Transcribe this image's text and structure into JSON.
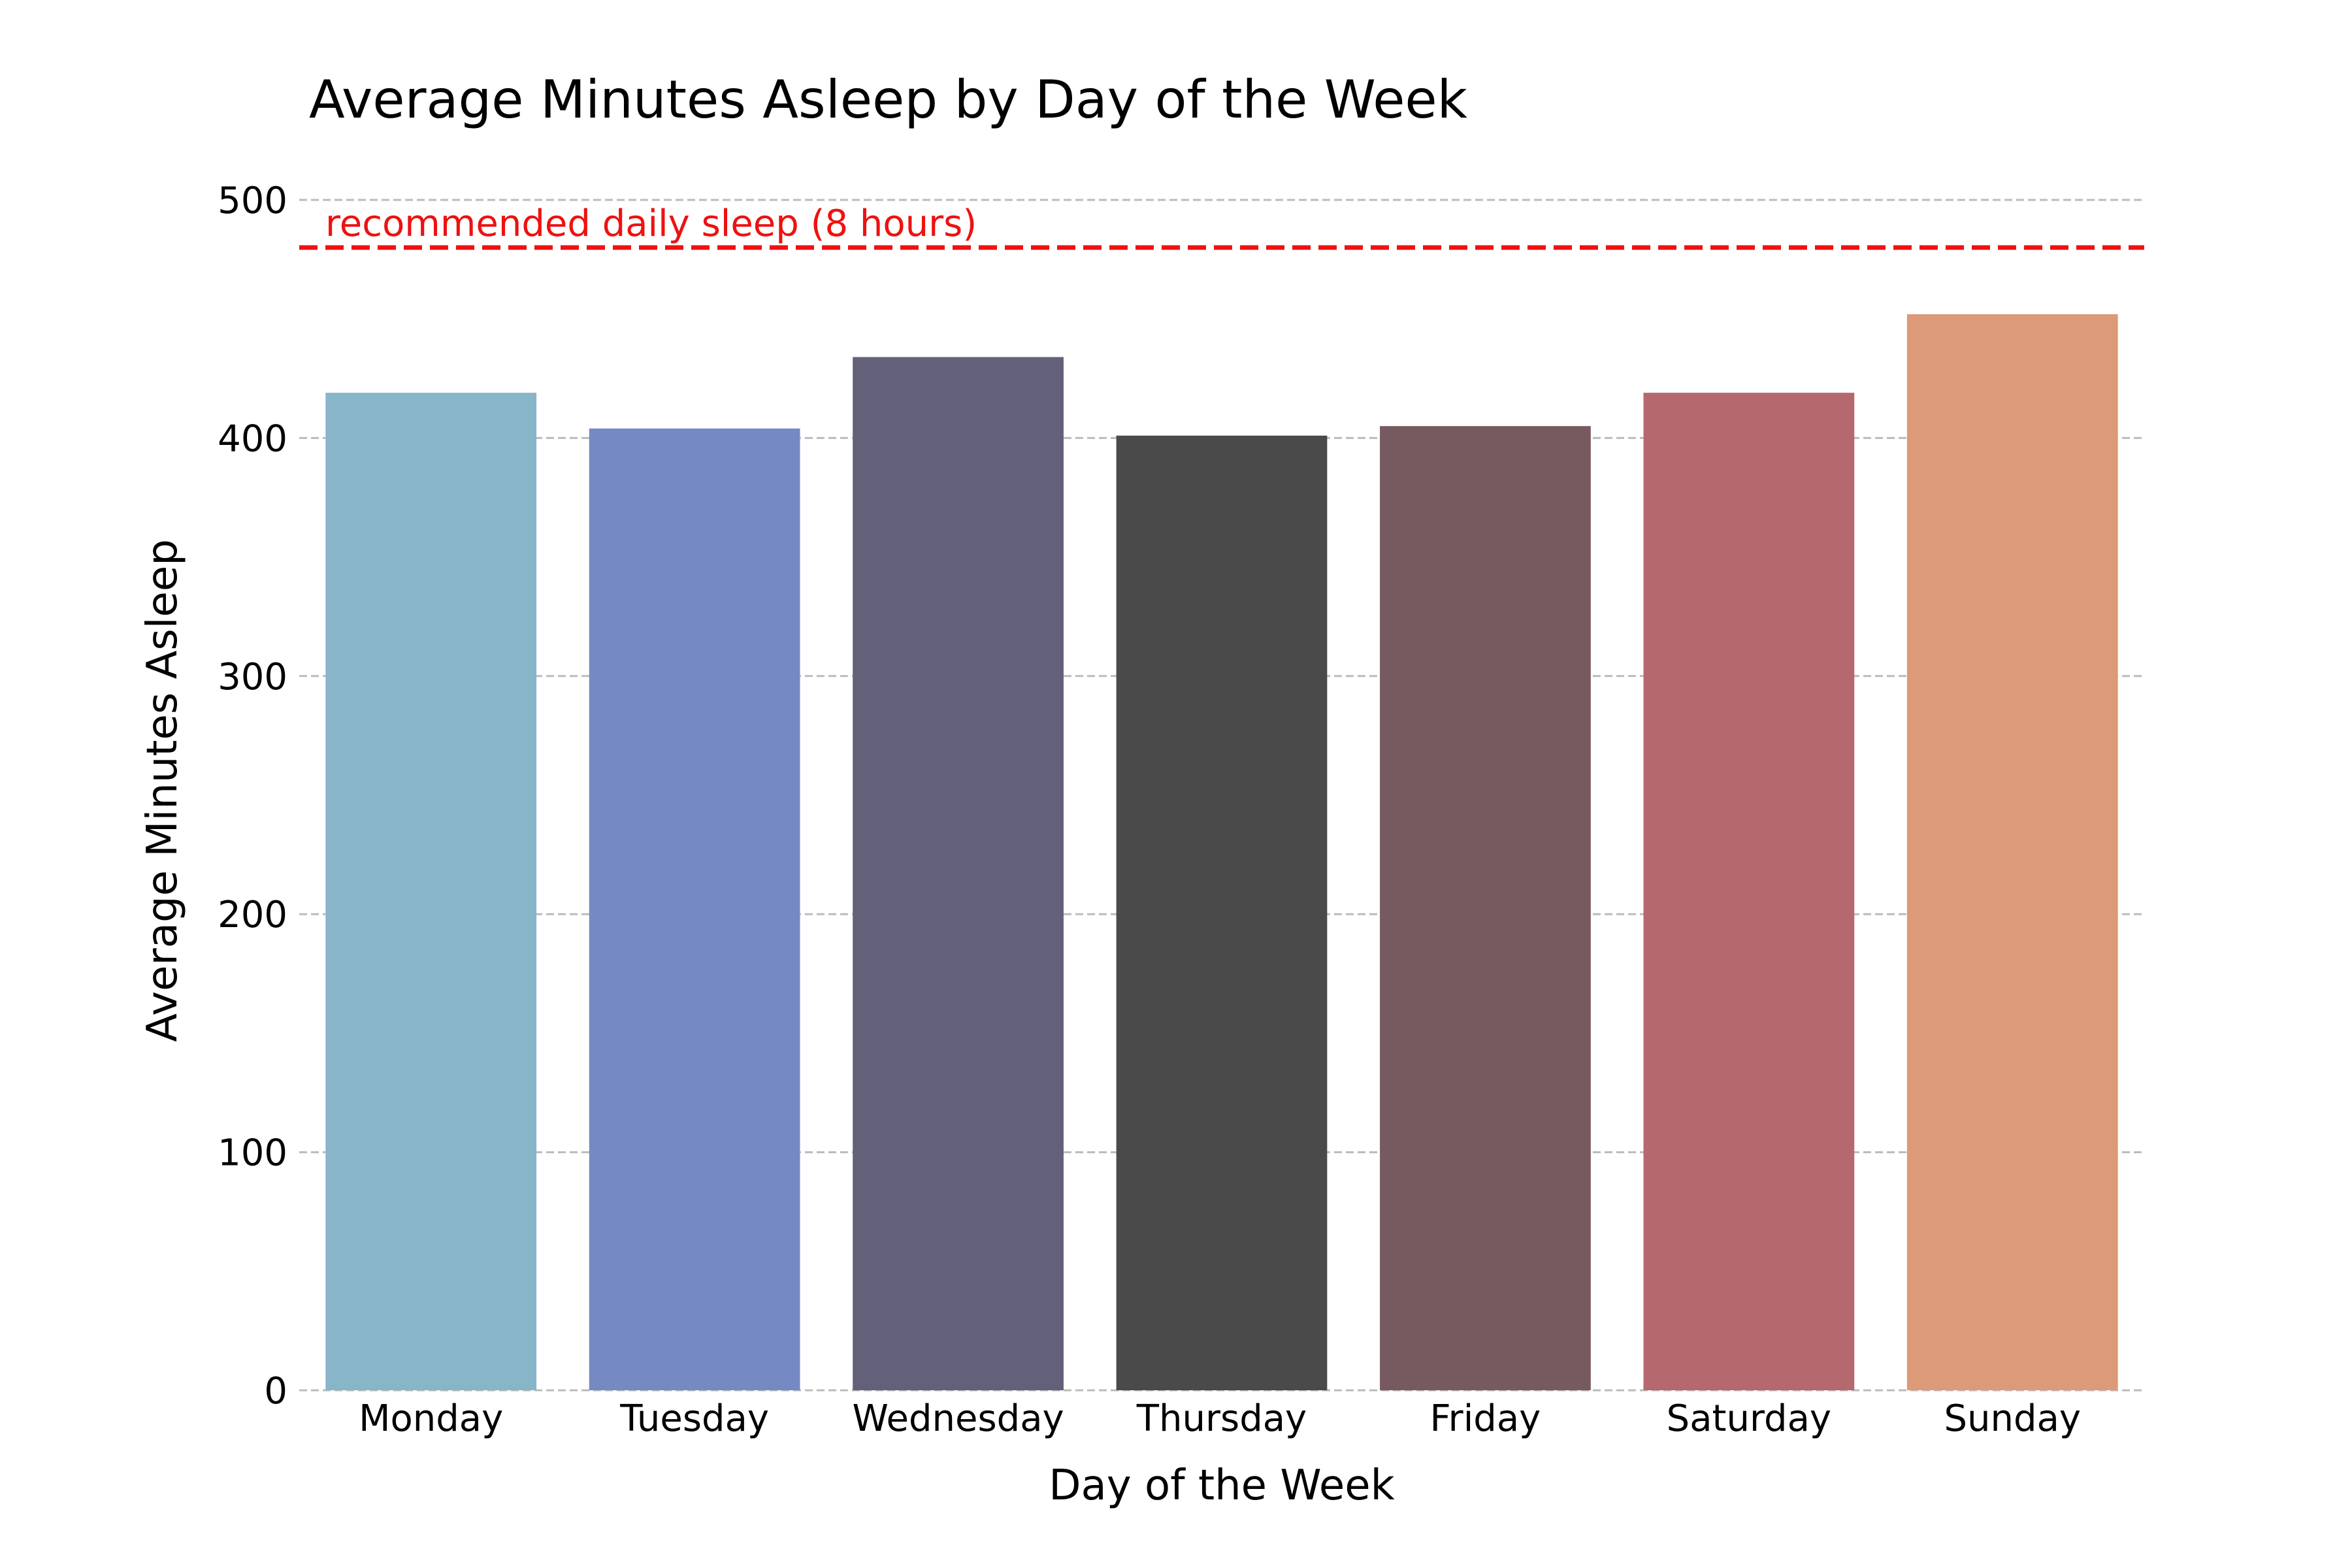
{
  "chart_data": {
    "type": "bar",
    "title": "Average Minutes Asleep by Day of the Week",
    "xlabel": "Day of the Week",
    "ylabel": "Average Minutes Asleep",
    "categories": [
      "Monday",
      "Tuesday",
      "Wednesday",
      "Thursday",
      "Friday",
      "Saturday",
      "Sunday"
    ],
    "values": [
      419,
      404,
      434,
      401,
      405,
      419,
      452
    ],
    "colors": [
      "#88b5c8",
      "#758ac3",
      "#636179",
      "#4a4a4a",
      "#775a5f",
      "#b5696f",
      "#dc9a78"
    ],
    "ylim": [
      0,
      500
    ],
    "yticks": [
      0,
      100,
      200,
      300,
      400,
      500
    ],
    "grid": true,
    "grid_axis": "y",
    "reference_line": {
      "value": 480,
      "label": "recommended daily sleep (8 hours)",
      "color": "#ee1111",
      "style": "dashed"
    }
  }
}
